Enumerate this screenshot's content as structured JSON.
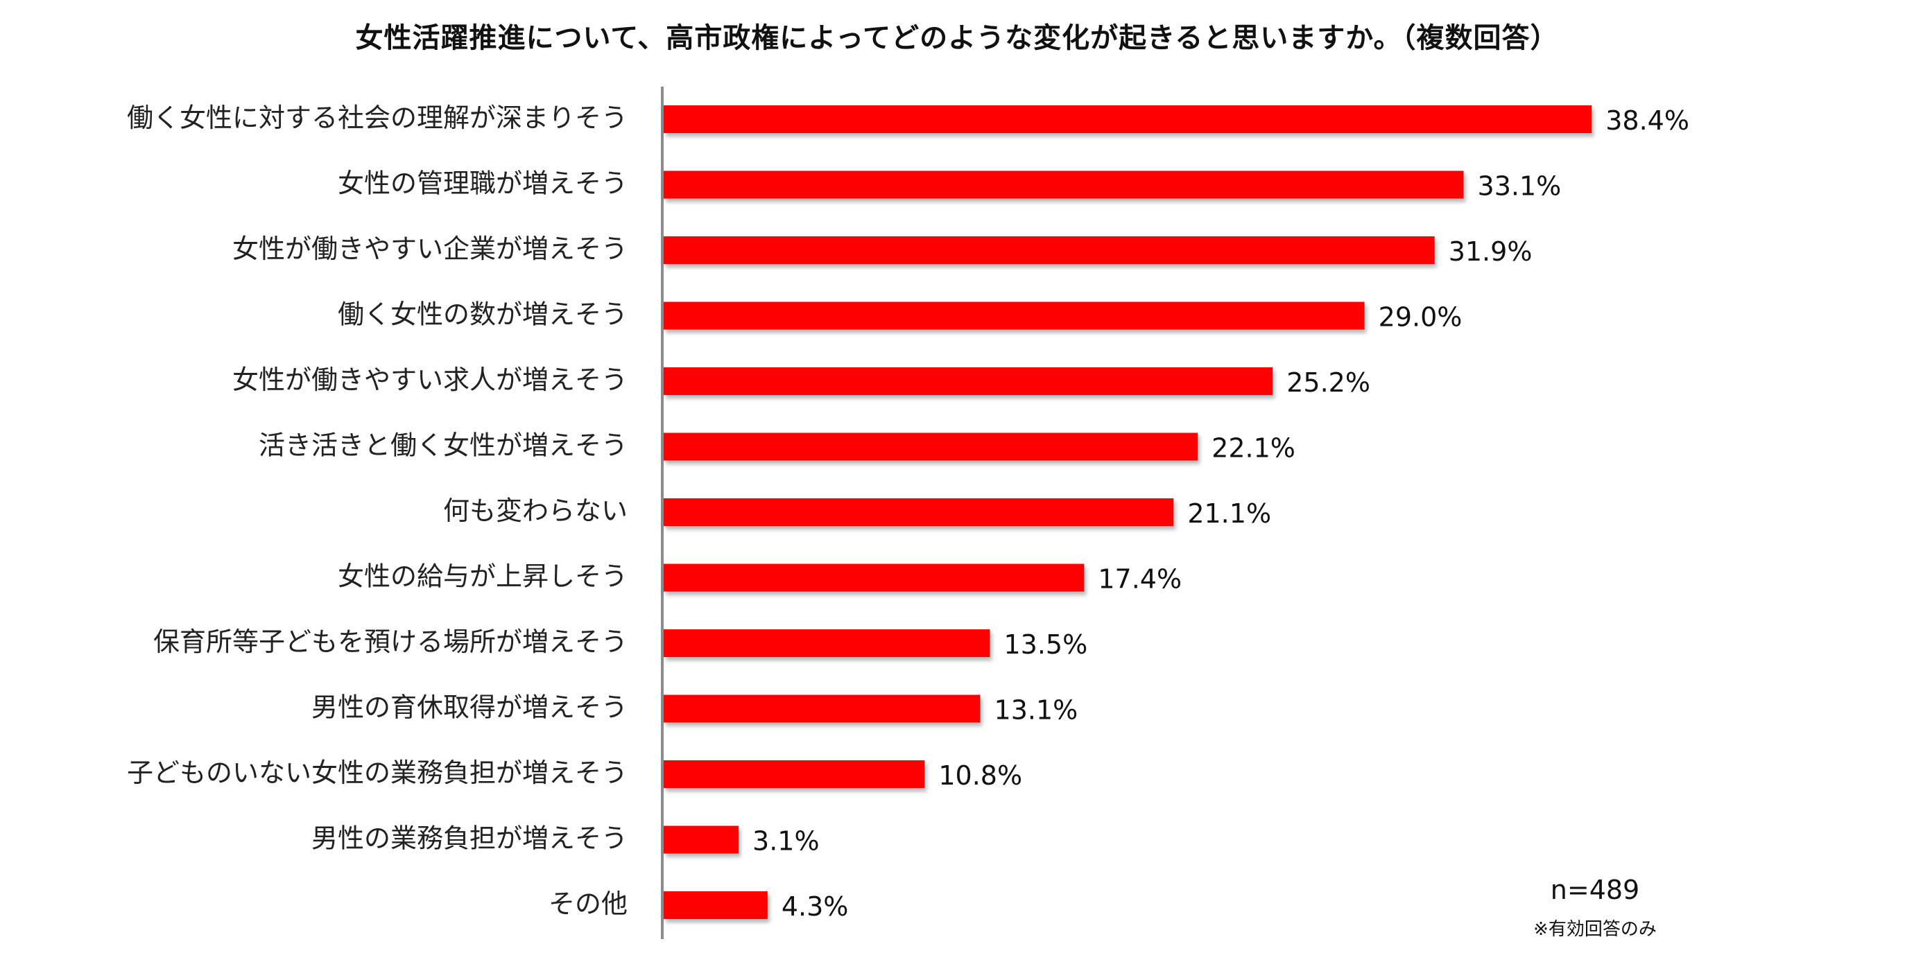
{
  "chart_data": {
    "type": "bar",
    "orientation": "horizontal",
    "title": "女性活躍推進について、高市政権によってどのような変化が起きると思いますか。（複数回答）",
    "categories": [
      "働く女性に対する社会の理解が深まりそう",
      "女性の管理職が増えそう",
      "女性が働きやすい企業が増えそう",
      "働く女性の数が増えそう",
      "女性が働きやすい求人が増えそう",
      "活き活きと働く女性が増えそう",
      "何も変わらない",
      "女性の給与が上昇しそう",
      "保育所等子どもを預ける場所が増えそう",
      "男性の育休取得が増えそう",
      "子どものいない女性の業務負担が増えそう",
      "男性の業務負担が増えそう",
      "その他"
    ],
    "values": [
      38.4,
      33.1,
      31.9,
      29.0,
      25.2,
      22.1,
      21.1,
      17.4,
      13.5,
      13.1,
      10.8,
      3.1,
      4.3
    ],
    "value_labels": [
      "38.4%",
      "33.1%",
      "31.9%",
      "29.0%",
      "25.2%",
      "22.1%",
      "21.1%",
      "17.4%",
      "13.5%",
      "13.1%",
      "10.8%",
      "3.1%",
      "4.3%"
    ],
    "xlim": [
      0,
      45
    ],
    "bar_color": "#ff0000",
    "grid": false,
    "legend": "none",
    "sample_size": "n=489",
    "footnote": "※有効回答のみ"
  }
}
